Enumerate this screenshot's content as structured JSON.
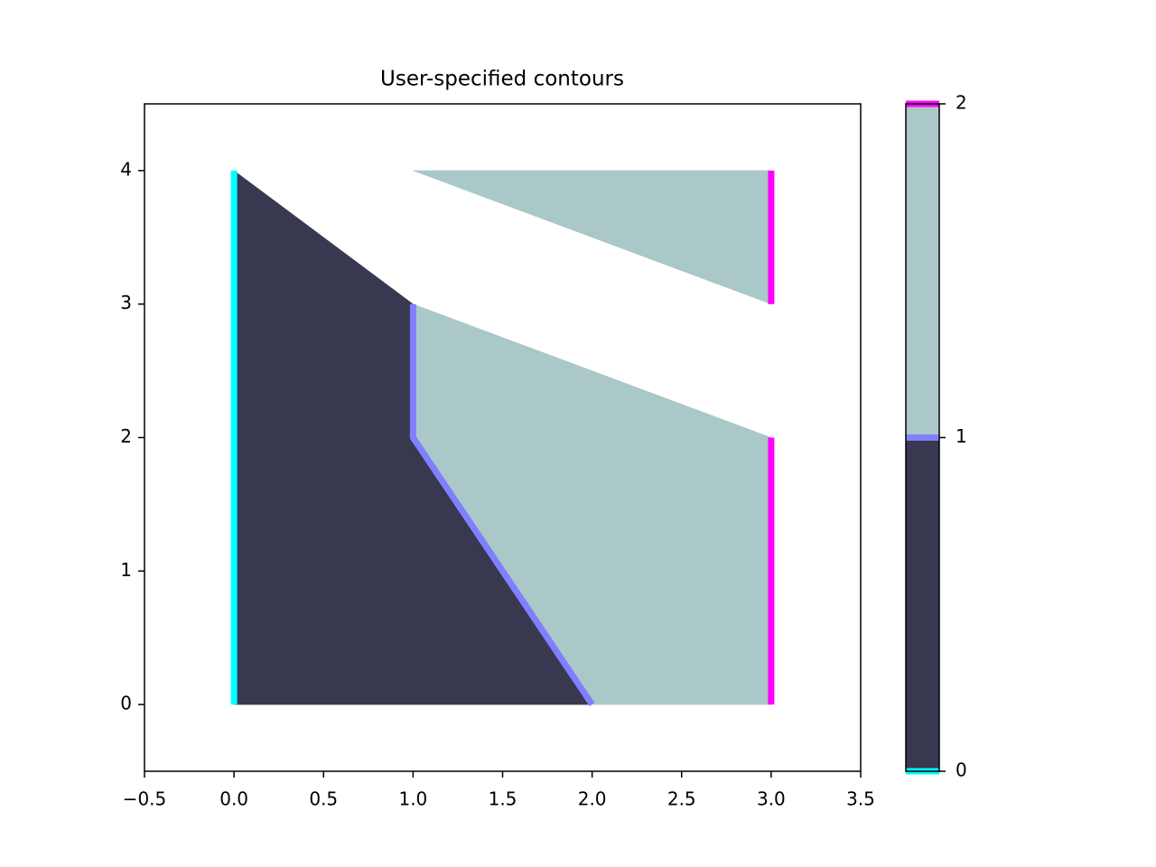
{
  "chart_data": {
    "type": "contour",
    "title": "User-specified contours",
    "xlim": [
      -0.5,
      3.5
    ],
    "ylim": [
      -0.5,
      4.5
    ],
    "xticks": [
      {
        "value": -0.5,
        "label": "−0.5"
      },
      {
        "value": 0,
        "label": "0.0"
      },
      {
        "value": 0.5,
        "label": "0.5"
      },
      {
        "value": 1,
        "label": "1.0"
      },
      {
        "value": 1.5,
        "label": "1.5"
      },
      {
        "value": 2,
        "label": "2.0"
      },
      {
        "value": 2.5,
        "label": "2.5"
      },
      {
        "value": 3,
        "label": "3.0"
      },
      {
        "value": 3.5,
        "label": "3.5"
      }
    ],
    "yticks": [
      0,
      1,
      2,
      3,
      4
    ],
    "fills": [
      {
        "levels": [
          0,
          1
        ],
        "color": "#383850",
        "polygons": [
          {
            "x": [
              0,
              0,
              1,
              1,
              2
            ],
            "y": [
              0,
              4,
              3,
              2,
              0
            ]
          }
        ]
      },
      {
        "levels": [
          1,
          2
        ],
        "color": "#aac8c8",
        "polygons": [
          {
            "x": [
              1,
              1,
              2,
              3,
              3
            ],
            "y": [
              3,
              2,
              0,
              0,
              2
            ]
          },
          {
            "x": [
              1,
              3,
              3
            ],
            "y": [
              4,
              4,
              3
            ]
          }
        ]
      }
    ],
    "lines": [
      {
        "level": 0,
        "color": "#00ffff",
        "segments": [
          {
            "x": [
              0,
              0
            ],
            "y": [
              0,
              4
            ]
          }
        ]
      },
      {
        "level": 1,
        "color": "#8080ff",
        "segments": [
          {
            "x": [
              1,
              1,
              2
            ],
            "y": [
              3,
              2,
              0
            ]
          }
        ]
      },
      {
        "level": 2,
        "color": "#ff00ff",
        "segments": [
          {
            "x": [
              3,
              3
            ],
            "y": [
              0,
              2
            ]
          },
          {
            "x": [
              3,
              3
            ],
            "y": [
              3,
              4
            ]
          }
        ]
      }
    ],
    "colorbar": {
      "lim": [
        0,
        2
      ],
      "ticks": [
        0,
        1,
        2
      ]
    }
  }
}
